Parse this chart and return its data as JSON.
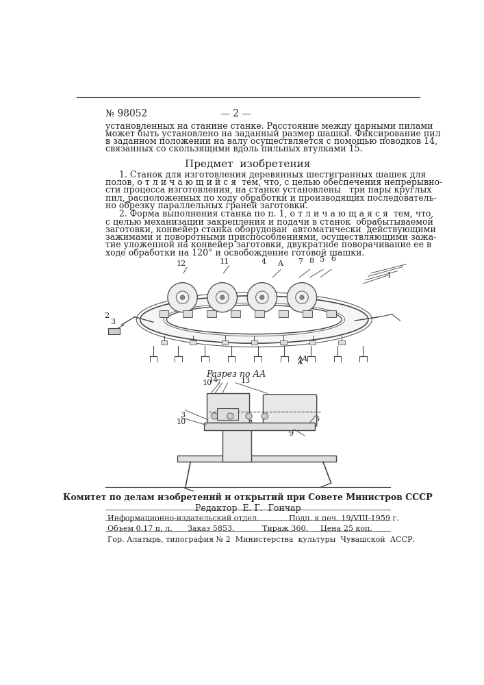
{
  "bg_color": "#ffffff",
  "header_number": "№ 98052",
  "header_page": "— 2 —",
  "body_text_lines": [
    "установленных на станине станке. Расстояние между парными пилами",
    "может быть установлено на заданный размер шашки. Фиксирование пил",
    "в заданном положении на валу осуществляется с помощью поводков 14,",
    "связанных со скользящими вдоль пильных втулками 15."
  ],
  "section_title": "Предмет  изобретения",
  "claim1_lines": [
    "     1. Станок для изготовления деревянных шестигранных шашек для",
    "полов, о т л и ч а ю щ и й с я  тем, что, с целью обеспечения непрерывно-",
    "сти процесса изготовления, на станке установлены   три пары круглых",
    "пил, расположенных по ходу обработки и производящих последователь-",
    "но обрезку параллельных граней заготовки."
  ],
  "claim2_lines": [
    "     2. Форма выполнения станка по п. 1, о т л и ч а ю щ а я с я  тем, что,",
    "с целью механизации закрепления и подачи в станок  обрабытываемой",
    "заготовки, конвейер станка оборудован  автоматически  действующими",
    "зажимами и поворотными приспособлениями, осуществляющими зажа-",
    "тие уложенной на конвейер заготовки, двукратное поворачивание ее в",
    "ходе обработки на 120° и освобождение готовой шашки."
  ],
  "diagram1_label": "Разрез по АА",
  "footer_bold": "Комитет по делам изобретений и открытий при Совете Министров СССР",
  "editor_line": "Редактор  Е. Г.  Гончар",
  "table_row1_col1": "Информационно-издательский отдел.",
  "table_row1_col2": "Подп. к печ. 19/VIII-1959 г.",
  "table_row2_col1": "Объем 0.17 п. л.",
  "table_row2_col2": "Заказ 5853.",
  "table_row2_col3": "Тираж 360.",
  "table_row2_col4": "Цена 25 коп.",
  "last_line": "Гор. Алатырь, типография № 2  Министерства  культуры  Чувашской  АССР."
}
